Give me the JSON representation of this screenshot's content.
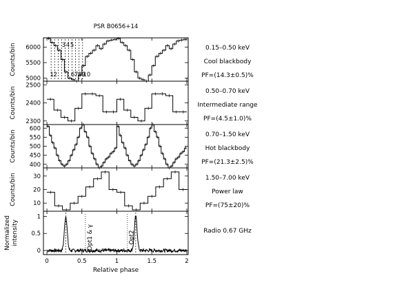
{
  "chart_data": {
    "type": "line",
    "title": "PSR B0656+14",
    "xlabel": "Relative phase",
    "xlim": [
      -0.05,
      2.02
    ],
    "xticks": [
      "0",
      "0.5",
      "1",
      "1.5",
      "2"
    ],
    "panels": [
      {
        "ylabel": "Counts/bin",
        "ylim": [
          4900,
          6300
        ],
        "yticks": [
          5000,
          5500,
          6000
        ],
        "yticklabels": [
          "5000",
          "5500",
          "6000"
        ],
        "info": [
          "0.15–0.50 keV",
          "Cool blackbody",
          "PF=(14.3±0.5)%"
        ],
        "phase_markers": [
          0.06,
          0.11,
          0.16,
          0.21,
          0.26,
          0.31,
          0.36,
          0.41,
          0.46,
          0.51
        ],
        "marker_labels_low": [
          "1",
          "2",
          "6",
          "7",
          "8",
          "9",
          "10"
        ],
        "marker_labels_high": [
          "3",
          "4",
          "5"
        ],
        "values": [
          6280,
          6150,
          6050,
          5900,
          5600,
          5200,
          5000,
          4950,
          4900,
          5100,
          5400,
          5700,
          5800,
          5900,
          6050,
          5950,
          6100,
          6200,
          6230,
          6250,
          6280,
          6150,
          6050,
          5900,
          5600,
          5200,
          5000,
          4950,
          4900,
          5100,
          5400,
          5700,
          5800,
          5900,
          6050,
          5950,
          6100,
          6200,
          6230,
          6250
        ]
      },
      {
        "ylabel": "Counts/bin",
        "ylim": [
          2280,
          2520
        ],
        "yticks": [
          2300,
          2400,
          2500
        ],
        "yticklabels": [
          "2300",
          "2400",
          "2500"
        ],
        "info": [
          "0.50–0.70 keV",
          "Intermediate range",
          "PF=(4.5±1.0)%"
        ],
        "values": [
          2420,
          2360,
          2320,
          2300,
          2370,
          2450,
          2450,
          2440,
          2350,
          2350,
          2420,
          2360,
          2320,
          2300,
          2370,
          2450,
          2450,
          2440,
          2350,
          2350
        ]
      },
      {
        "ylabel": "Counts/bin",
        "ylim": [
          380,
          620
        ],
        "yticks": [
          400,
          450,
          500,
          550,
          600
        ],
        "yticklabels": [
          "400",
          "450",
          "500",
          "550",
          "600"
        ],
        "info": [
          "0.70–1.50 keV",
          "Hot blackbody",
          "PF=(21.3±2.5)%"
        ],
        "values": [
          610,
          560,
          520,
          490,
          450,
          420,
          400,
          390,
          400,
          420,
          450,
          480,
          510,
          550,
          600,
          620,
          580,
          550,
          500,
          460,
          430,
          400,
          380,
          390,
          410,
          430,
          440,
          460,
          470,
          490,
          610,
          560,
          520,
          490,
          450,
          420,
          400,
          390,
          400,
          420,
          450,
          480,
          510,
          550,
          600,
          620,
          580,
          550,
          500,
          460,
          430,
          400,
          380,
          390,
          410,
          430,
          440,
          460,
          470,
          490
        ]
      },
      {
        "ylabel": "Counts/bin",
        "ylim": [
          4,
          36
        ],
        "yticks": [
          10,
          20,
          30
        ],
        "yticklabels": [
          "10",
          "20",
          "30"
        ],
        "info": [
          "1.50–7.00 keV",
          "Power law",
          "PF=(75±20)%"
        ],
        "values": [
          18,
          8,
          5,
          10,
          15,
          22,
          28,
          33,
          20,
          18,
          8,
          5,
          10,
          15,
          22,
          28,
          33,
          20
        ]
      },
      {
        "ylabel": "Normalized intensity",
        "ylim": [
          -0.12,
          1.15
        ],
        "yticks": [
          0,
          0.5,
          1
        ],
        "yticklabels": [
          "0",
          "0.5",
          "1"
        ],
        "info": [
          "Radio 0.67 GHz"
        ],
        "annotations": [
          "Opt1 & γ",
          "Opt2"
        ],
        "annotation_phases": [
          0.55,
          1.15
        ],
        "peak_phases": [
          0.27,
          1.27
        ]
      }
    ]
  }
}
